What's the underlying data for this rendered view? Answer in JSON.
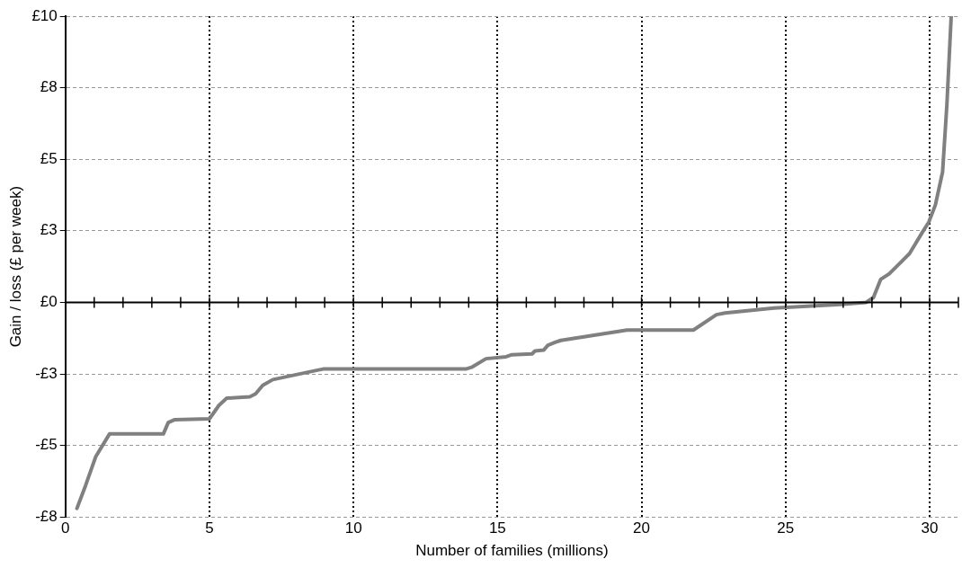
{
  "chart_data": {
    "type": "line",
    "xlabel": "Number of families (millions)",
    "ylabel": "Gain / loss (£ per week)",
    "xlim": [
      0,
      31
    ],
    "xticks": [
      0,
      5,
      10,
      15,
      20,
      25,
      30
    ],
    "ylim": [
      -7.5,
      10
    ],
    "yticks": [
      {
        "value": -7.5,
        "label": "-£8"
      },
      {
        "value": -5,
        "label": "-£5"
      },
      {
        "value": -2.5,
        "label": "-£3"
      },
      {
        "value": 0,
        "label": "£0"
      },
      {
        "value": 2.5,
        "label": "£3"
      },
      {
        "value": 5,
        "label": "£5"
      },
      {
        "value": 7.5,
        "label": "£8"
      },
      {
        "value": 10,
        "label": "£10"
      }
    ],
    "grid": true,
    "legend": false,
    "marker": "none",
    "line_style": "solid",
    "series": [
      {
        "color": "#808080",
        "x": [
          0.4,
          0.7,
          1.05,
          1.53,
          3.4,
          3.57,
          3.8,
          5.0,
          5.33,
          5.6,
          6.4,
          6.6,
          6.85,
          7.2,
          8.75,
          8.95,
          13.9,
          14.1,
          14.6,
          15.3,
          15.5,
          16.2,
          16.3,
          16.6,
          16.75,
          17.0,
          17.2,
          19.5,
          21.8,
          22.6,
          22.9,
          24.6,
          26.9,
          27.8,
          28.05,
          28.3,
          28.6,
          29.0,
          29.3,
          29.75,
          29.97,
          30.2,
          30.45,
          30.6,
          30.75
        ],
        "values": [
          -7.2,
          -6.4,
          -5.4,
          -4.6,
          -4.6,
          -4.2,
          -4.1,
          -4.07,
          -3.6,
          -3.35,
          -3.3,
          -3.2,
          -2.9,
          -2.7,
          -2.37,
          -2.33,
          -2.33,
          -2.27,
          -1.97,
          -1.9,
          -1.83,
          -1.8,
          -1.7,
          -1.67,
          -1.5,
          -1.4,
          -1.33,
          -0.97,
          -0.97,
          -0.43,
          -0.37,
          -0.2,
          -0.07,
          0,
          0.17,
          0.8,
          1.0,
          1.4,
          1.7,
          2.45,
          2.8,
          3.4,
          4.55,
          6.9,
          10
        ]
      }
    ]
  }
}
